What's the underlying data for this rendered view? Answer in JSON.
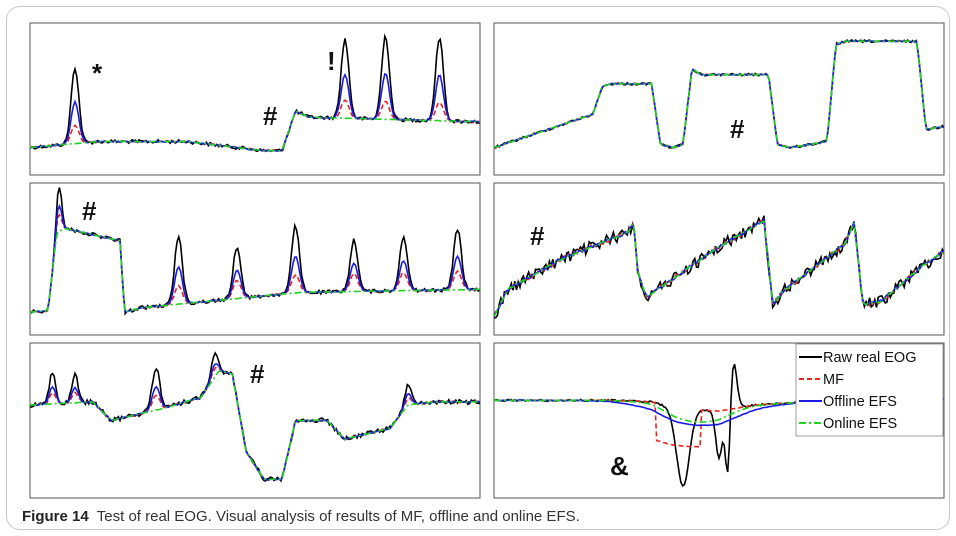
{
  "figure": {
    "label": "Figure 14",
    "caption": "Test of real EOG. Visual analysis of results of MF, offline and online EFS."
  },
  "legend": {
    "entries": [
      {
        "name": "Raw real EOG",
        "color": "#000000",
        "dash": "solid"
      },
      {
        "name": "MF",
        "color": "#e8241c",
        "dash": "dashed"
      },
      {
        "name": "Offline EFS",
        "color": "#1a1ae6",
        "dash": "solid"
      },
      {
        "name": "Online EFS",
        "color": "#1fd21f",
        "dash": "dashdot"
      }
    ]
  },
  "panels": [
    {
      "id": "top-left",
      "markers": [
        "*",
        "#",
        "!"
      ]
    },
    {
      "id": "top-right",
      "markers": [
        "#"
      ]
    },
    {
      "id": "middle-left",
      "markers": [
        "#"
      ]
    },
    {
      "id": "middle-right",
      "markers": [
        "#"
      ]
    },
    {
      "id": "bottom-left",
      "markers": [
        "#"
      ]
    },
    {
      "id": "bottom-right",
      "markers": [
        "&"
      ]
    }
  ]
}
